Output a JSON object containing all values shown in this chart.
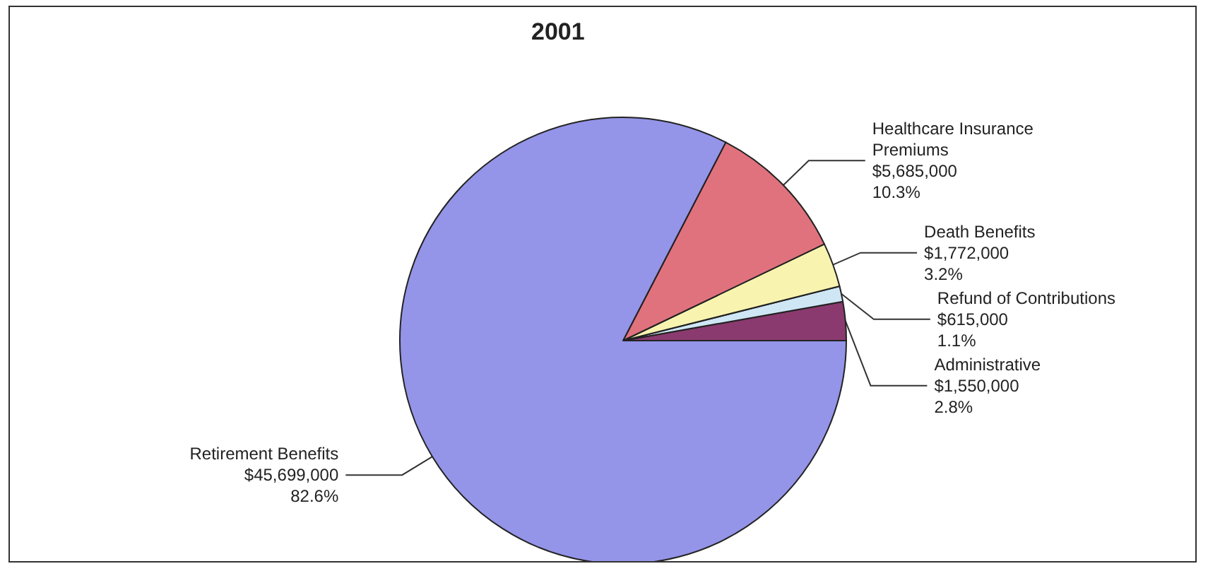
{
  "chart_data": {
    "type": "pie",
    "title": "2001",
    "categories": [
      "Administrative",
      "Refund of Contributions",
      "Death Benefits",
      "Healthcare Insurance Premiums",
      "Retirement Benefits"
    ],
    "values": [
      1550000,
      615000,
      1772000,
      5685000,
      45699000
    ],
    "value_labels": [
      "$1,550,000\n2.8%",
      "$615,000\n1.1%",
      "$1,772,000\n3.2%",
      "$5,685,000\n10.3%",
      "$45,699,000\n82.6%"
    ],
    "colors": [
      "#8a3a6e",
      "#cfe6f5",
      "#f8f4b0",
      "#e0727e",
      "#9494e8"
    ]
  }
}
